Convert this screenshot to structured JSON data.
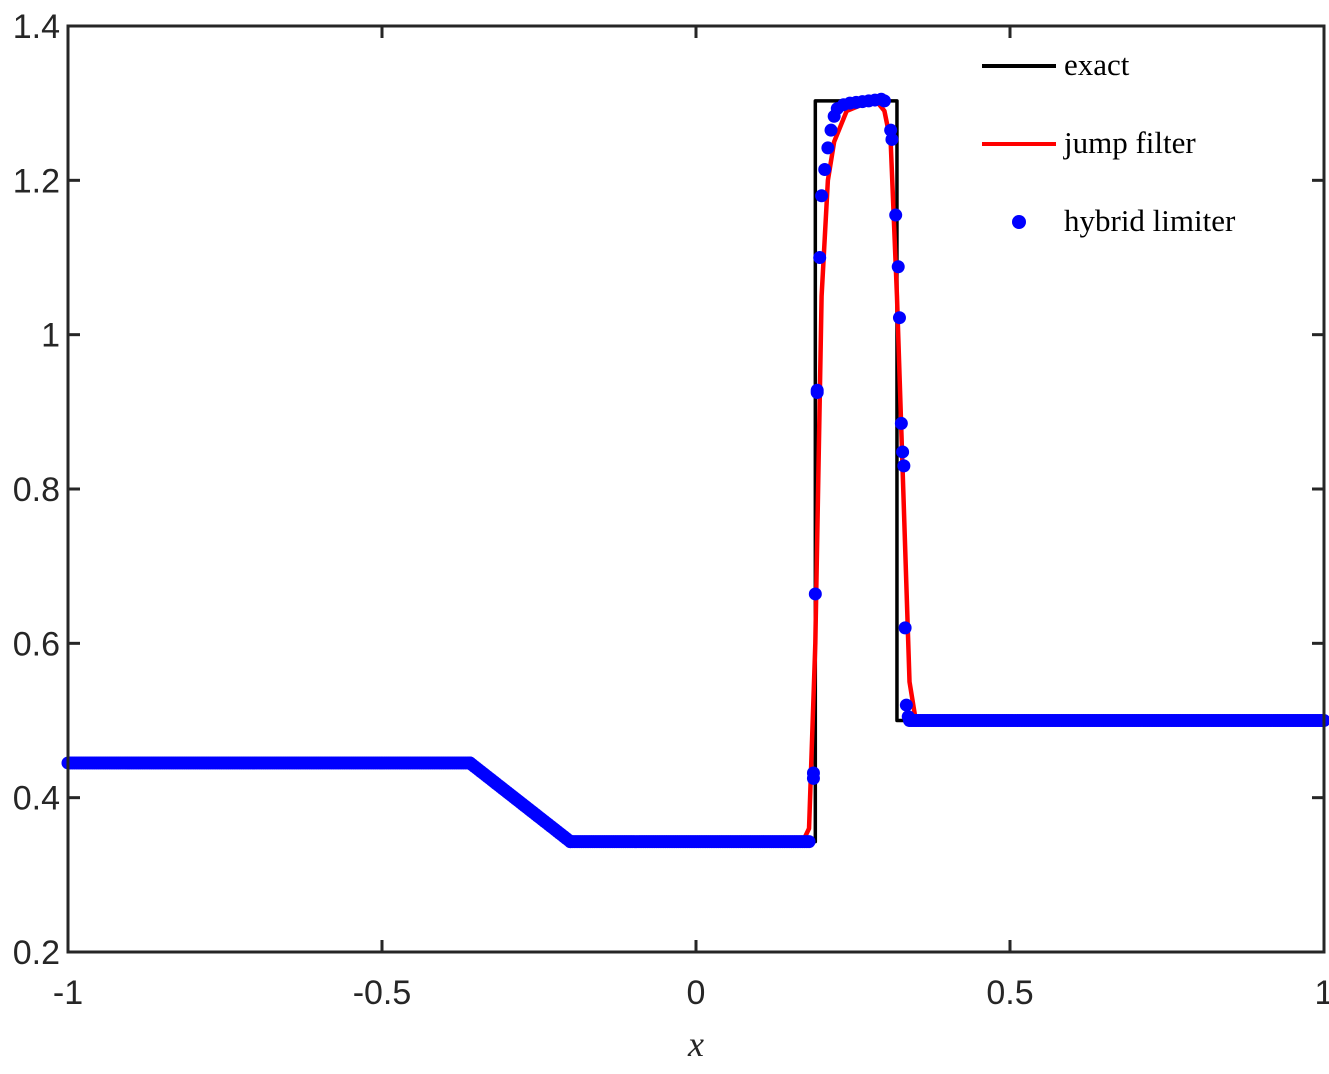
{
  "chart_data": {
    "type": "line",
    "xlabel": "x",
    "ylabel": "",
    "title": "",
    "xlim": [
      -1,
      1
    ],
    "ylim": [
      0.2,
      1.4
    ],
    "x_ticks": [
      -1,
      -0.5,
      0,
      0.5,
      1
    ],
    "x_tick_labels": [
      "-1",
      "-0.5",
      "0",
      "0.5",
      "1"
    ],
    "y_ticks": [
      0.2,
      0.4,
      0.6,
      0.8,
      1,
      1.2,
      1.4
    ],
    "y_tick_labels": [
      "0.2",
      "0.4",
      "0.6",
      "0.8",
      "1",
      "1.2",
      "1.4"
    ],
    "grid": false,
    "legend_position": "top-right",
    "series": [
      {
        "name": "exact",
        "style": "line",
        "color": "#000000",
        "x": [
          -1,
          -0.36,
          -0.2,
          0.18,
          0.19,
          0.19,
          0.32,
          0.32,
          1
        ],
        "y": [
          0.445,
          0.445,
          0.343,
          0.343,
          0.343,
          1.303,
          1.303,
          0.5,
          0.5
        ]
      },
      {
        "name": "jump filter",
        "style": "line",
        "color": "#ff0000",
        "x": [
          -1,
          -0.36,
          -0.2,
          0.17,
          0.18,
          0.19,
          0.2,
          0.21,
          0.22,
          0.24,
          0.27,
          0.29,
          0.3,
          0.31,
          0.32,
          0.33,
          0.34,
          0.35,
          1
        ],
        "y": [
          0.445,
          0.445,
          0.343,
          0.343,
          0.36,
          0.6,
          1.05,
          1.2,
          1.25,
          1.29,
          1.3,
          1.3,
          1.29,
          1.25,
          1.05,
          0.8,
          0.55,
          0.5,
          0.5
        ]
      },
      {
        "name": "hybrid limiter",
        "style": "scatter",
        "color": "#0000ff",
        "dense_x": [
          [
            -1,
            -0.36
          ],
          [
            -0.36,
            -0.2
          ],
          [
            -0.2,
            0.18
          ],
          [
            0.34,
            1
          ]
        ],
        "dense_y": [
          [
            0.445,
            0.445
          ],
          [
            0.445,
            0.343
          ],
          [
            0.343,
            0.343
          ],
          [
            0.5,
            0.5
          ]
        ],
        "x": [
          0.187,
          0.187,
          0.19,
          0.193,
          0.193,
          0.197,
          0.2,
          0.205,
          0.21,
          0.215,
          0.22,
          0.225,
          0.235,
          0.245,
          0.255,
          0.265,
          0.275,
          0.285,
          0.295,
          0.3,
          0.31,
          0.312,
          0.318,
          0.322,
          0.324,
          0.327,
          0.329,
          0.331,
          0.333,
          0.335,
          0.338
        ],
        "y": [
          0.432,
          0.425,
          0.664,
          0.928,
          0.925,
          1.1,
          1.18,
          1.214,
          1.242,
          1.265,
          1.283,
          1.293,
          1.298,
          1.3,
          1.301,
          1.302,
          1.303,
          1.304,
          1.305,
          1.303,
          1.265,
          1.253,
          1.155,
          1.088,
          1.022,
          0.885,
          0.848,
          0.83,
          0.62,
          0.52,
          0.505
        ]
      }
    ]
  }
}
